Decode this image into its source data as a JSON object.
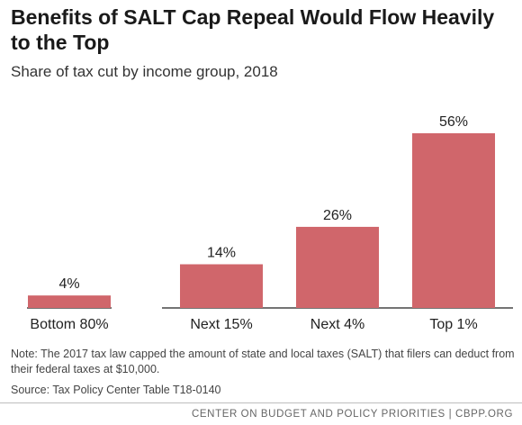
{
  "title": "Benefits of SALT Cap Repeal Would Flow Heavily to the Top",
  "subtitle": "Share of tax cut by income group, 2018",
  "note": "Note: The 2017 tax law capped the amount of state and local taxes (SALT) that filers can deduct from their federal taxes at $10,000.",
  "source": "Source: Tax Policy Center Table T18-0140",
  "footer": "CENTER ON BUDGET AND POLICY PRIORITIES | CBPP.ORG",
  "colors": {
    "bar": "#d0666b",
    "axis": "#222222"
  },
  "chart_data": {
    "type": "bar",
    "title": "Benefits of SALT Cap Repeal Would Flow Heavily to the Top",
    "subtitle": "Share of tax cut by income group, 2018",
    "categories": [
      "Bottom 80%",
      "Next 15%",
      "Next 4%",
      "Top 1%"
    ],
    "values": [
      4,
      14,
      26,
      56
    ],
    "data_labels": [
      "4%",
      "14%",
      "26%",
      "56%"
    ],
    "unit": "%",
    "ylim": [
      0,
      60
    ],
    "grid": false,
    "legend": "none"
  }
}
